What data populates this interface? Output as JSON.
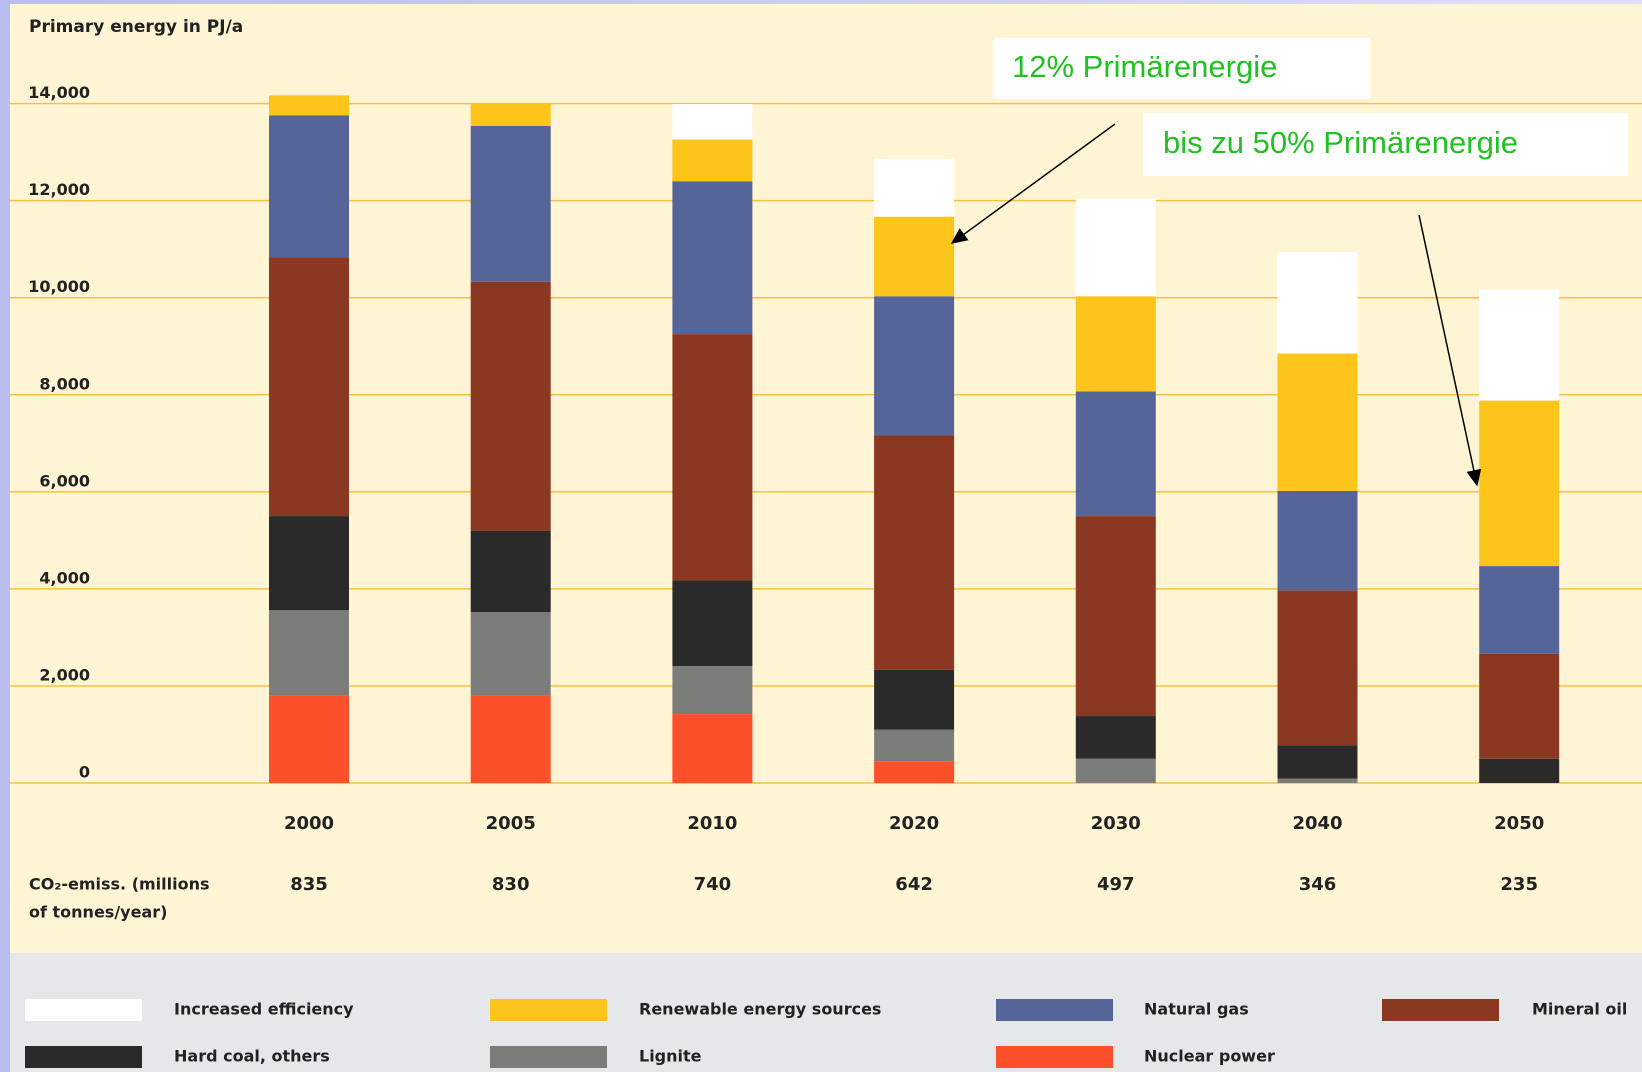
{
  "chart_data": {
    "type": "stacked_bar",
    "title": "Primary energy in PJ/a",
    "categories": [
      "2000",
      "2005",
      "2010",
      "2020",
      "2030",
      "2040",
      "2050"
    ],
    "ylim": [
      0,
      14000
    ],
    "yticks": [
      {
        "value": 0,
        "label": "0"
      },
      {
        "value": 2000,
        "label": "2,000"
      },
      {
        "value": 4000,
        "label": "4,000"
      },
      {
        "value": 6000,
        "label": "6,000"
      },
      {
        "value": 8000,
        "label": "8,000"
      },
      {
        "value": 10000,
        "label": "10,000"
      },
      {
        "value": 12000,
        "label": "12,000"
      },
      {
        "value": 14000,
        "label": "14,000"
      }
    ],
    "grid": true,
    "series": [
      {
        "name": "Increased efficiency",
        "color": "#ffffff",
        "values": [
          0,
          0,
          730,
          1190,
          2010,
          2090,
          2290
        ]
      },
      {
        "name": "Renewable energy sources",
        "color": "#fdc41a",
        "values": [
          410,
          450,
          860,
          1640,
          1960,
          2830,
          3410
        ]
      },
      {
        "name": "Natural gas",
        "color": "#556597",
        "values": [
          2930,
          3210,
          3150,
          2870,
          2570,
          2050,
          1810
        ]
      },
      {
        "name": "Mineral oil",
        "color": "#8a3822",
        "values": [
          5330,
          5130,
          5070,
          4830,
          4120,
          3190,
          2160
        ]
      },
      {
        "name": "Hard coal, others",
        "color": "#2a2a2a",
        "values": [
          1940,
          1680,
          1770,
          1230,
          880,
          690,
          500
        ]
      },
      {
        "name": "Lignite",
        "color": "#7b7d7b",
        "values": [
          1750,
          1710,
          990,
          650,
          500,
          90,
          0
        ]
      },
      {
        "name": "Nuclear power",
        "color": "#fc502b",
        "values": [
          1810,
          1810,
          1420,
          450,
          0,
          0,
          0
        ]
      }
    ],
    "co2_label": [
      "CO₂-emiss. (millions",
      "of tonnes/year)"
    ],
    "co2_values": [
      835,
      830,
      740,
      642,
      497,
      346,
      235
    ],
    "annotations": [
      "12% Primärenergie",
      "bis zu 50% Primärenergie"
    ]
  }
}
